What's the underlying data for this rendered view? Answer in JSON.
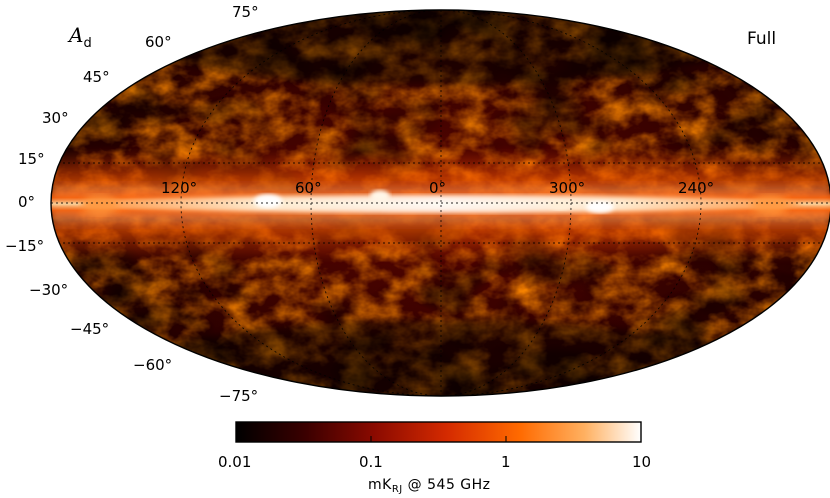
{
  "map": {
    "title_main": "A",
    "title_sub": "d",
    "label_right": "Full",
    "lat_labels": [
      "75°",
      "60°",
      "45°",
      "30°",
      "15°",
      "0°",
      "−15°",
      "−30°",
      "−45°",
      "−60°",
      "−75°"
    ],
    "lon_labels": [
      "120°",
      "60°",
      "0°",
      "300°",
      "240°"
    ]
  },
  "colorbar": {
    "ticks": [
      "0.01",
      "0.1",
      "1",
      "10"
    ],
    "unit_main": "mK",
    "unit_sub": "RJ",
    "unit_rest": " @ 545 GHz",
    "colors": [
      "#000000",
      "#3a0000",
      "#8a0a00",
      "#d42a00",
      "#ff6a00",
      "#ffb060",
      "#ffffff"
    ]
  }
}
